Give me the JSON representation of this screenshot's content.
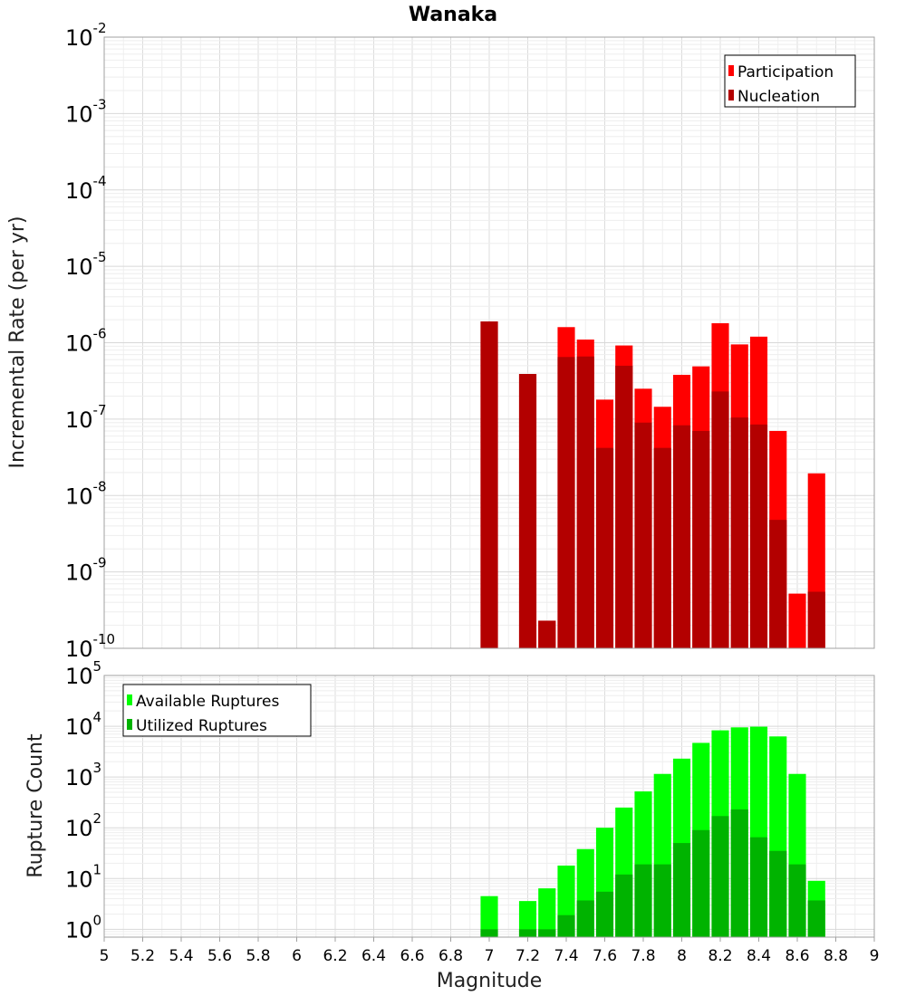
{
  "chart_data": [
    {
      "type": "bar",
      "title": "Wanaka",
      "xlabel": "",
      "ylabel": "Incremental Rate (per yr)",
      "yscale": "log",
      "xlim": [
        5,
        9
      ],
      "ylim": [
        1e-10,
        0.01
      ],
      "y_tick_exponents": [
        "-10",
        "-9",
        "-8",
        "-7",
        "-6",
        "-5",
        "-4",
        "-3",
        "-2"
      ],
      "legend_position": "top-right",
      "grid": true,
      "series": [
        {
          "name": "Participation",
          "color": "#ff0000",
          "x": [
            7.0,
            7.2,
            7.3,
            7.4,
            7.5,
            7.6,
            7.7,
            7.8,
            7.9,
            8.0,
            8.1,
            8.2,
            8.3,
            8.4,
            8.5,
            8.6,
            8.7
          ],
          "values": [
            1.9e-06,
            3.9e-07,
            2.3e-10,
            1.6e-06,
            1.1e-06,
            1.8e-07,
            9.2e-07,
            2.5e-07,
            1.45e-07,
            3.8e-07,
            4.9e-07,
            1.8e-06,
            9.5e-07,
            1.2e-06,
            7e-08,
            5.2e-10,
            1.95e-08
          ]
        },
        {
          "name": "Nucleation",
          "color": "#b30000",
          "x": [
            7.0,
            7.2,
            7.3,
            7.4,
            7.5,
            7.6,
            7.7,
            7.8,
            7.9,
            8.0,
            8.1,
            8.2,
            8.3,
            8.4,
            8.5,
            8.6,
            8.7
          ],
          "values": [
            1.9e-06,
            3.9e-07,
            2.3e-10,
            6.5e-07,
            6.6e-07,
            4.2e-08,
            5e-07,
            9e-08,
            4.2e-08,
            8.3e-08,
            7e-08,
            2.3e-07,
            1.05e-07,
            8.5e-08,
            4.8e-09,
            0,
            5.5e-10
          ]
        }
      ]
    },
    {
      "type": "bar",
      "title": "",
      "xlabel": "Magnitude",
      "ylabel": "Rupture Count",
      "yscale": "log",
      "xlim": [
        5,
        9
      ],
      "ylim": [
        0.7,
        100000.0
      ],
      "y_tick_exponents": [
        "0",
        "1",
        "2",
        "3",
        "4",
        "5"
      ],
      "x_ticks": [
        "5",
        "5.2",
        "5.4",
        "5.6",
        "5.8",
        "6",
        "6.2",
        "6.4",
        "6.6",
        "6.8",
        "7",
        "7.2",
        "7.4",
        "7.6",
        "7.8",
        "8",
        "8.2",
        "8.4",
        "8.6",
        "8.8",
        "9"
      ],
      "legend_position": "top-left",
      "grid": true,
      "series": [
        {
          "name": "Available Ruptures",
          "color": "#00ff00",
          "x": [
            7.0,
            7.2,
            7.3,
            7.4,
            7.5,
            7.6,
            7.7,
            7.8,
            7.9,
            8.0,
            8.1,
            8.2,
            8.3,
            8.4,
            8.5,
            8.6,
            8.7
          ],
          "values": [
            4.5,
            3.6,
            6.4,
            18,
            38,
            100,
            250,
            520,
            1150,
            2300,
            4700,
            8300,
            9500,
            9800,
            6300,
            1150,
            9
          ]
        },
        {
          "name": "Utilized Ruptures",
          "color": "#00b300",
          "x": [
            7.0,
            7.2,
            7.3,
            7.4,
            7.5,
            7.6,
            7.7,
            7.8,
            7.9,
            8.0,
            8.1,
            8.2,
            8.3,
            8.4,
            8.5,
            8.6,
            8.7
          ],
          "values": [
            1,
            1,
            1,
            1.9,
            3.7,
            5.5,
            12,
            19,
            19,
            50,
            90,
            170,
            230,
            65,
            35,
            19,
            3.7
          ]
        }
      ]
    }
  ]
}
